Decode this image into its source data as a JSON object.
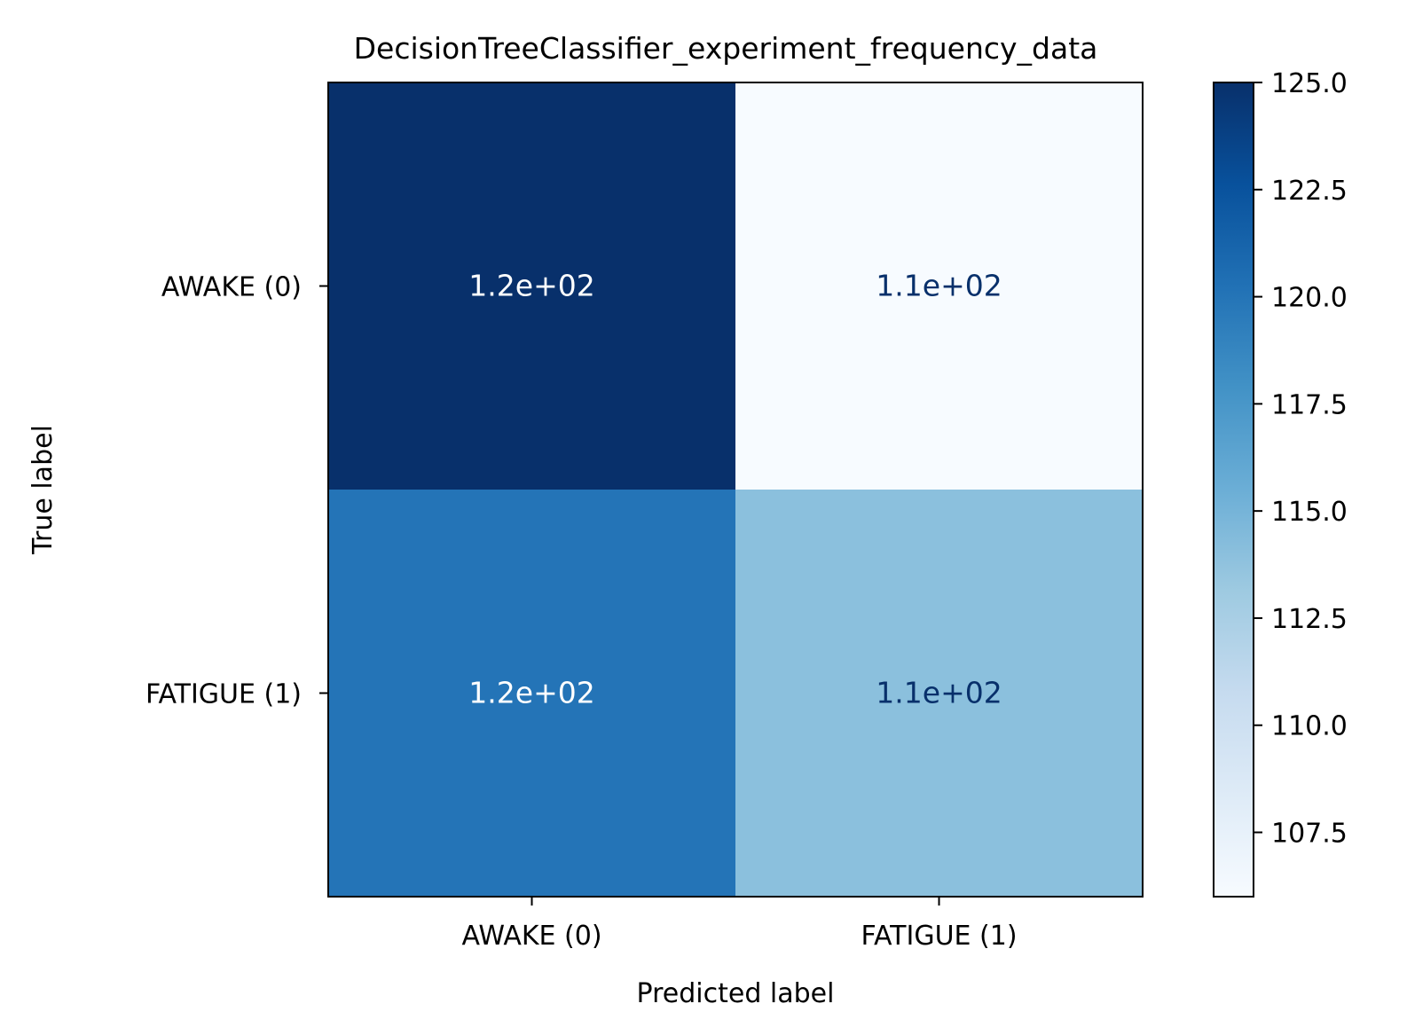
{
  "chart_data": {
    "type": "heatmap",
    "title": "DecisionTreeClassifier_experiment_frequency_data",
    "xlabel": "Predicted label",
    "ylabel": "True label",
    "x_categories": [
      "AWAKE (0)",
      "FATIGUE (1)"
    ],
    "y_categories": [
      "AWAKE (0)",
      "FATIGUE (1)"
    ],
    "values": [
      [
        125,
        106
      ],
      [
        120,
        114
      ]
    ],
    "cell_labels": [
      [
        "1.2e+02",
        "1.1e+02"
      ],
      [
        "1.2e+02",
        "1.1e+02"
      ]
    ],
    "colormap": "Blues",
    "colorbar": {
      "min": 106,
      "max": 125,
      "ticks": [
        107.5,
        110.0,
        112.5,
        115.0,
        117.5,
        120.0,
        122.5,
        125.0
      ],
      "tick_labels": [
        "107.5",
        "110.0",
        "112.5",
        "115.0",
        "117.5",
        "120.0",
        "122.5",
        "125.0"
      ]
    },
    "grid": false,
    "text_color_dark": "#08306b",
    "text_color_light": "#ffffff"
  }
}
